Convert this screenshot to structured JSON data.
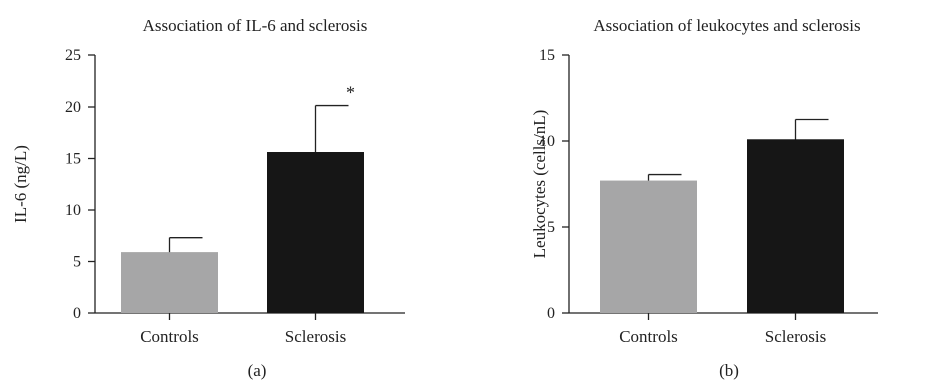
{
  "chart_data": [
    {
      "type": "bar",
      "title": "Association of IL-6 and sclerosis",
      "ylabel": "IL-6 (ng/L)",
      "xlabel": "",
      "panel_label": "(a)",
      "categories": [
        "Controls",
        "Sclerosis"
      ],
      "values": [
        5.9,
        15.6
      ],
      "error_upper": [
        7.3,
        20.1
      ],
      "bar_colors": [
        "#a6a6a7",
        "#161616"
      ],
      "significance": [
        "",
        "*"
      ],
      "ylim": [
        0,
        25
      ],
      "yticks": [
        "0",
        "5",
        "10",
        "15",
        "20",
        "25"
      ],
      "grid": false
    },
    {
      "type": "bar",
      "title": "Association of leukocytes and sclerosis",
      "ylabel": "Leukocytes (cells/nL)",
      "xlabel": "",
      "panel_label": "(b)",
      "categories": [
        "Controls",
        "Sclerosis"
      ],
      "values": [
        7.7,
        10.1
      ],
      "error_upper": [
        8.05,
        11.25
      ],
      "bar_colors": [
        "#a6a6a7",
        "#161616"
      ],
      "significance": [
        "",
        ""
      ],
      "ylim": [
        0,
        15
      ],
      "yticks": [
        "0",
        "5",
        "10",
        "15"
      ],
      "grid": false
    }
  ]
}
